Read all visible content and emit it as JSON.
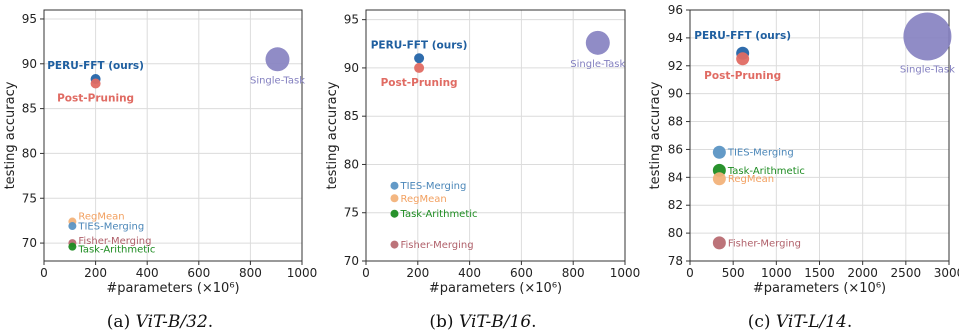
{
  "chart_data": [
    {
      "type": "scatter",
      "caption_prefix": "(a)",
      "caption_model": "ViT-B/32",
      "caption_suffix": ".",
      "xlabel": "#parameters (×10⁶)",
      "ylabel": "testing accuracy",
      "xlim": [
        0,
        1000
      ],
      "ylim": [
        68,
        96
      ],
      "xticks": [
        0,
        200,
        400,
        600,
        800,
        1000
      ],
      "yticks": [
        70,
        75,
        80,
        85,
        90,
        95
      ],
      "grid": true,
      "points": [
        {
          "label": "PERU-FFT (ours)",
          "x": 200,
          "y": 88.3,
          "color": "#2464a8",
          "label_bold": true,
          "label_color": "#1f5fa0"
        },
        {
          "label": "Post-Pruning",
          "x": 200,
          "y": 87.8,
          "color": "#e06b63",
          "label_bold": true,
          "label_color": "#e06b63"
        },
        {
          "label": "Single-Task",
          "x": 905,
          "y": 90.5,
          "color": "#8480c0",
          "label_bold": false,
          "label_color": "#8480c0"
        },
        {
          "label": "RegMean",
          "x": 110,
          "y": 72.4,
          "color": "#f2b27a",
          "label_bold": false,
          "label_color": "#f2a060"
        },
        {
          "label": "TIES-Merging",
          "x": 110,
          "y": 71.9,
          "color": "#5b95c4",
          "label_bold": false,
          "label_color": "#4a86b8"
        },
        {
          "label": "Fisher-Merging",
          "x": 110,
          "y": 70.0,
          "color": "#b86b72",
          "label_bold": false,
          "label_color": "#b0606a"
        },
        {
          "label": "Task-Arithmetic",
          "x": 110,
          "y": 69.6,
          "color": "#1e8c22",
          "label_bold": false,
          "label_color": "#1e8c22"
        }
      ]
    },
    {
      "type": "scatter",
      "caption_prefix": "(b)",
      "caption_model": "ViT-B/16",
      "caption_suffix": ".",
      "xlabel": "#parameters (×10⁶)",
      "ylabel": "testing accuracy",
      "xlim": [
        0,
        1000
      ],
      "ylim": [
        70,
        96
      ],
      "xticks": [
        0,
        200,
        400,
        600,
        800,
        1000
      ],
      "yticks": [
        70,
        75,
        80,
        85,
        90,
        95
      ],
      "grid": true,
      "points": [
        {
          "label": "PERU-FFT (ours)",
          "x": 205,
          "y": 91.0,
          "color": "#2464a8",
          "label_bold": true,
          "label_color": "#1f5fa0"
        },
        {
          "label": "Post-Pruning",
          "x": 205,
          "y": 90.0,
          "color": "#e06b63",
          "label_bold": true,
          "label_color": "#e06b63"
        },
        {
          "label": "Single-Task",
          "x": 895,
          "y": 92.6,
          "color": "#8480c0",
          "label_bold": false,
          "label_color": "#8480c0"
        },
        {
          "label": "TIES-Merging",
          "x": 110,
          "y": 77.8,
          "color": "#5b95c4",
          "label_bold": false,
          "label_color": "#4a86b8"
        },
        {
          "label": "RegMean",
          "x": 110,
          "y": 76.5,
          "color": "#f2b27a",
          "label_bold": false,
          "label_color": "#f2a060"
        },
        {
          "label": "Task-Arithmetic",
          "x": 110,
          "y": 74.9,
          "color": "#1e8c22",
          "label_bold": false,
          "label_color": "#1e8c22"
        },
        {
          "label": "Fisher-Merging",
          "x": 110,
          "y": 71.7,
          "color": "#b86b72",
          "label_bold": false,
          "label_color": "#b0606a"
        }
      ]
    },
    {
      "type": "scatter",
      "caption_prefix": "(c)",
      "caption_model": "ViT-L/14",
      "caption_suffix": ".",
      "xlabel": "#parameters (×10⁶)",
      "ylabel": "testing accuracy",
      "xlim": [
        0,
        3000
      ],
      "ylim": [
        78,
        96
      ],
      "xticks": [
        0,
        500,
        1000,
        1500,
        2000,
        2500,
        3000
      ],
      "yticks": [
        78,
        80,
        82,
        84,
        86,
        88,
        90,
        92,
        94,
        96
      ],
      "grid": true,
      "points": [
        {
          "label": "PERU-FFT (ours)",
          "x": 610,
          "y": 92.9,
          "color": "#2464a8",
          "label_bold": true,
          "label_color": "#1f5fa0"
        },
        {
          "label": "Post-Pruning",
          "x": 610,
          "y": 92.5,
          "color": "#e06b63",
          "label_bold": true,
          "label_color": "#e06b63"
        },
        {
          "label": "Single-Task",
          "x": 2750,
          "y": 94.1,
          "color": "#8480c0",
          "label_bold": false,
          "label_color": "#8480c0"
        },
        {
          "label": "TIES-Merging",
          "x": 340,
          "y": 85.8,
          "color": "#5b95c4",
          "label_bold": false,
          "label_color": "#4a86b8"
        },
        {
          "label": "Task-Arithmetic",
          "x": 340,
          "y": 84.5,
          "color": "#1e8c22",
          "label_bold": false,
          "label_color": "#1e8c22"
        },
        {
          "label": "RegMean",
          "x": 340,
          "y": 83.9,
          "color": "#f2b27a",
          "label_bold": false,
          "label_color": "#f2a060"
        },
        {
          "label": "Fisher-Merging",
          "x": 340,
          "y": 79.3,
          "color": "#b86b72",
          "label_bold": false,
          "label_color": "#b0606a"
        }
      ]
    }
  ]
}
